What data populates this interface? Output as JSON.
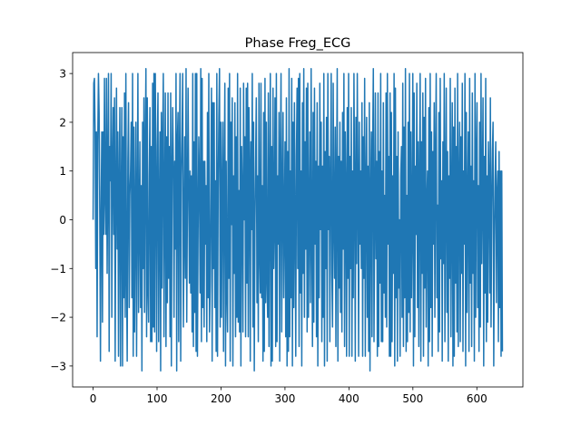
{
  "chart_data": {
    "type": "line",
    "title": "Phase Freg_ECG",
    "xlabel": "",
    "ylabel": "",
    "xlim": [
      -32,
      672
    ],
    "ylim": [
      -3.43,
      3.43
    ],
    "xticks": [
      0,
      100,
      200,
      300,
      400,
      500,
      600
    ],
    "yticks": [
      -3,
      -2,
      -1,
      0,
      1,
      2,
      3
    ],
    "grid": false,
    "legend": "none",
    "series": [
      {
        "color": "#1f77b4",
        "x_start": 0,
        "x_end": 640,
        "values": [
          0.0,
          2.8,
          2.9,
          1.8,
          -1.0,
          1.8,
          -2.4,
          1.6,
          3.0,
          2.2,
          0.1,
          -2.9,
          0.2,
          1.8,
          -2.1,
          1.8,
          -0.3,
          2.9,
          0.5,
          -0.3,
          2.9,
          -1.1,
          1.0,
          3.0,
          -2.7,
          1.5,
          0.8,
          3.0,
          -2.0,
          1.1,
          2.3,
          -0.3,
          2.5,
          -2.9,
          0.6,
          2.7,
          -0.6,
          1.8,
          -2.8,
          0.7,
          2.3,
          -3.0,
          0.4,
          2.3,
          -3.0,
          1.7,
          -1.6,
          2.6,
          -2.0,
          3.0,
          -1.0,
          -2.9,
          1.2,
          2.4,
          -1.8,
          0.5,
          1.0,
          2.0,
          -1.6,
          3.0,
          -2.8,
          1.9,
          -2.3,
          0.0,
          2.0,
          -2.8,
          0.2,
          3.0,
          -1.9,
          0.0,
          1.6,
          -1.8,
          0.7,
          -3.1,
          2.0,
          -1.0,
          2.5,
          -1.9,
          1.5,
          3.1,
          -2.4,
          2.5,
          -1.4,
          -2.1,
          0.9,
          2.3,
          -2.5,
          1.5,
          -2.5,
          2.8,
          -2.2,
          3.0,
          -2.3,
          3.0,
          0.8,
          -2.7,
          1.5,
          2.6,
          -2.5,
          0.2,
          1.8,
          -3.1,
          2.2,
          -1.4,
          1.6,
          3.0,
          -2.4,
          0.3,
          2.6,
          -2.6,
          1.7,
          -1.7,
          2.6,
          -1.2,
          1.5,
          -2.4,
          2.6,
          -3.0,
          0.9,
          2.3,
          1.0,
          -2.0,
          1.2,
          -0.6,
          3.0,
          -3.1,
          1.6,
          2.2,
          -2.5,
          1.3,
          3.0,
          -2.9,
          0.9,
          1.8,
          3.0,
          -2.2,
          -0.4,
          1.7,
          -1.2,
          3.1,
          -2.1,
          0.3,
          2.7,
          0.6,
          -1.3,
          1.0,
          -1.5,
          0.9,
          -2.3,
          3.0,
          -2.6,
          1.6,
          -1.9,
          3.0,
          -2.7,
          3.0,
          -2.8,
          -0.2,
          1.7,
          0.7,
          -1.5,
          3.1,
          -2.5,
          2.9,
          -1.8,
          1.2,
          -2.2,
          1.2,
          -0.5,
          0.7,
          -2.5,
          2.2,
          -1.6,
          3.0,
          -2.3,
          -1.3,
          0.6,
          2.7,
          -2.9,
          2.4,
          -1.0,
          2.4,
          -1.8,
          0.8,
          -2.7,
          3.0,
          -2.8,
          0.6,
          2.1,
          3.1,
          -2.2,
          2.0,
          -2.0,
          0.6,
          2.0,
          -2.7,
          0.8,
          2.8,
          -3.0,
          1.2,
          -1.4,
          -2.3,
          2.7,
          -1.2,
          3.0,
          -2.9,
          2.0,
          -0.1,
          2.5,
          -3.0,
          0.9,
          -1.1,
          2.4,
          -2.4,
          1.7,
          -2.0,
          3.0,
          -2.1,
          0.6,
          -2.3,
          2.7,
          -3.0,
          1.5,
          0.5,
          -2.3,
          2.8,
          0.0,
          1.7,
          -2.4,
          2.7,
          -1.3,
          2.8,
          -2.4,
          2.3,
          1.1,
          -2.9,
          1.6,
          -0.2,
          3.0,
          -2.2,
          2.0,
          -3.1,
          -0.1,
          1.2,
          2.5,
          -1.7,
          0.9,
          -2.5,
          2.8,
          -0.6,
          -1.5,
          2.8,
          -1.6,
          0.7,
          -2.9,
          2.2,
          -2.7,
          2.9,
          -1.7,
          2.0,
          -1.2,
          -2.0,
          2.6,
          -2.6,
          0.5,
          3.0,
          -3.0,
          1.5,
          -2.9,
          2.7,
          -1.0,
          0.0,
          2.5,
          -2.6,
          3.0,
          -2.5,
          0.9,
          -0.5,
          2.2,
          -2.9,
          1.2,
          3.0,
          -2.3,
          0.5,
          2.2,
          -1.6,
          0.0,
          1.6,
          -2.4,
          2.5,
          -3.0,
          1.4,
          -2.7,
          3.1,
          -2.4,
          1.0,
          -1.6,
          2.9,
          -3.0,
          2.0,
          -1.8,
          2.4,
          0.0,
          -2.8,
          1.3,
          2.7,
          -1.0,
          2.9,
          -2.6,
          3.0,
          -1.5,
          1.0,
          -3.0,
          2.4,
          -1.1,
          3.1,
          -2.0,
          1.6,
          -0.6,
          2.7,
          -2.3,
          2.8,
          -2.0,
          0.1,
          1.8,
          -1.7,
          3.1,
          -0.3,
          -2.6,
          2.2,
          -2.1,
          2.7,
          -0.5,
          1.2,
          -2.4,
          2.4,
          -3.0,
          1.1,
          -1.6,
          2.8,
          -0.2,
          2.0,
          -2.5,
          1.1,
          -2.0,
          3.0,
          -3.0,
          1.4,
          -1.0,
          2.1,
          -2.9,
          3.0,
          -0.2,
          1.3,
          -2.5,
          0.8,
          3.0,
          -1.1,
          -2.2,
          2.8,
          0.0,
          -1.2,
          1.9,
          -2.6,
          0.8,
          3.1,
          -2.9,
          1.3,
          -1.4,
          2.0,
          -1.9,
          1.2,
          -2.3,
          2.2,
          -0.6,
          3.0,
          -2.6,
          1.8,
          0.6,
          -2.8,
          2.3,
          -1.2,
          3.0,
          -2.8,
          1.3,
          -1.0,
          2.3,
          -2.8,
          1.0,
          -1.6,
          3.0,
          0.6,
          -2.9,
          2.1,
          -0.9,
          3.0,
          0.6,
          -2.8,
          2.0,
          -0.5,
          1.0,
          -1.0,
          2.4,
          -2.8,
          1.7,
          -1.2,
          2.9,
          -2.8,
          0.6,
          2.1,
          -2.0,
          1.1,
          -2.7,
          2.4,
          -3.1,
          0.4,
          1.8,
          -2.4,
          1.5,
          3.1,
          -2.5,
          0.0,
          2.6,
          -0.8,
          1.2,
          -2.8,
          2.6,
          -2.6,
          1.4,
          -1.3,
          3.0,
          -2.5,
          1.0,
          -2.5,
          2.4,
          -1.5,
          0.5,
          -2.0,
          2.6,
          -2.2,
          3.0,
          -0.5,
          1.3,
          -2.8,
          2.6,
          -2.8,
          2.2,
          -2.5,
          0.9,
          -1.1,
          3.0,
          -3.0,
          2.7,
          -1.6,
          1.3,
          -2.9,
          1.8,
          -1.4,
          0.0,
          -2.8,
          0.9,
          1.5,
          -2.0,
          2.8,
          -2.6,
          1.9,
          -1.6,
          3.1,
          -2.7,
          0.5,
          -2.5,
          2.0,
          -1.9,
          3.0,
          -2.3,
          1.8,
          -1.6,
          0.0,
          3.0,
          -3.0,
          2.6,
          -2.4,
          1.1,
          -0.3,
          2.8,
          -1.8,
          1.6,
          -2.6,
          0.8,
          3.0,
          -2.9,
          1.6,
          -1.1,
          2.6,
          -2.8,
          2.1,
          -1.4,
          2.9,
          -2.2,
          0.3,
          1.0,
          -3.0,
          2.3,
          -2.5,
          3.0,
          -1.8,
          1.8,
          -2.8,
          1.4,
          -0.5,
          2.4,
          -2.0,
          1.3,
          3.0,
          -1.6,
          0.3,
          -2.7,
          2.2,
          -2.3,
          2.9,
          -0.8,
          0.8,
          -2.9,
          1.6,
          -0.9,
          3.0,
          -2.5,
          0.7,
          2.7,
          -1.9,
          1.4,
          -2.9,
          0.9,
          -1.2,
          2.9,
          -2.4,
          0.3,
          2.4,
          -3.0,
          1.9,
          -2.8,
          2.7,
          -1.3,
          1.5,
          -2.3,
          3.0,
          -2.6,
          0.7,
          2.0,
          -2.5,
          1.7,
          -1.1,
          2.8,
          -2.7,
          1.0,
          -0.5,
          3.0,
          -3.0,
          2.2,
          -1.9,
          0.4,
          1.8,
          -2.7,
          2.9,
          -1.3,
          1.1,
          -2.6,
          2.6,
          -1.1,
          0.8,
          -2.9,
          3.0,
          -2.0,
          1.3,
          2.4,
          -1.8,
          0.7,
          -2.7,
          2.0,
          -2.2,
          3.0,
          -0.9,
          0.6,
          2.5,
          -3.0,
          1.3,
          -1.5,
          2.9,
          -2.5,
          0.9,
          -2.1,
          1.6,
          0.8,
          -1.5,
          2.5,
          -2.2,
          0.2,
          1.4,
          2.0,
          -3.0,
          -0.5,
          0.8,
          1.6,
          -1.7,
          0.5,
          1.0,
          -2.5,
          1.4,
          -1.8,
          1.0,
          -2.8,
          1.0,
          -2.7
        ]
      }
    ]
  }
}
